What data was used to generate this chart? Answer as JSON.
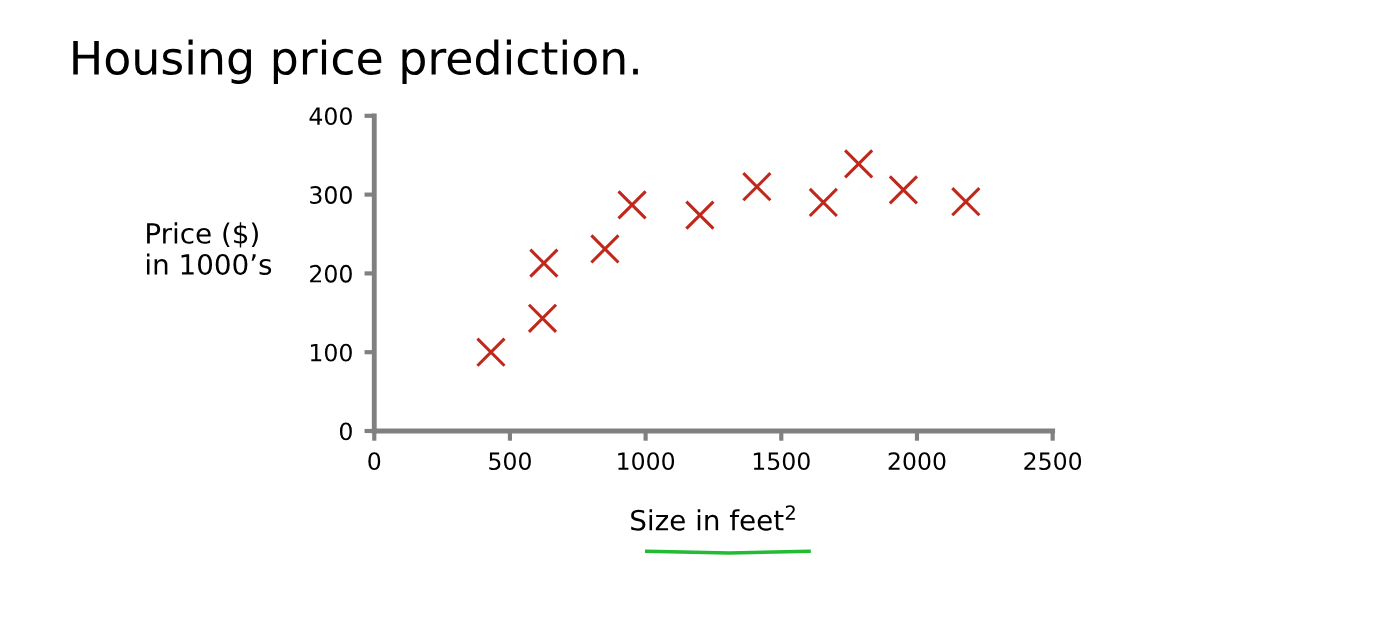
{
  "chart_data": {
    "type": "scatter",
    "title": "Housing price prediction.",
    "xlabel": "Size in feet$^{2}$",
    "ylabel": "Price ($)\nin 1000’s",
    "x": [
      430,
      620,
      625,
      850,
      950,
      1200,
      1410,
      1655,
      1785,
      1950,
      2180
    ],
    "series": [
      {
        "color": "#c0281c",
        "values": [
          100,
          143,
          213,
          231,
          287,
          274,
          310,
          290,
          339,
          306,
          291
        ]
      }
    ],
    "xlim": [
      0,
      2500
    ],
    "xticks": [
      0,
      500,
      1000,
      1500,
      2000,
      2500
    ],
    "ylim": [
      0,
      400
    ],
    "yticks": [
      0,
      100,
      200,
      300,
      400
    ],
    "marker": "cross",
    "grid": false,
    "legend": false
  }
}
